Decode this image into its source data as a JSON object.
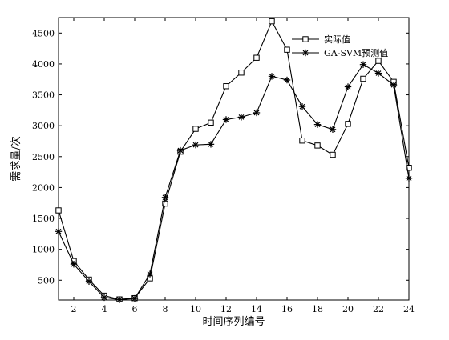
{
  "chart_data": {
    "type": "line",
    "title": "",
    "xlabel": "时间序列编号",
    "ylabel": "需求量/次",
    "xlim": [
      1,
      24
    ],
    "ylim": [
      180,
      4750
    ],
    "xticks": [
      2,
      4,
      6,
      8,
      10,
      12,
      14,
      16,
      18,
      20,
      22,
      24
    ],
    "yticks": [
      500,
      1000,
      1500,
      2000,
      2500,
      3000,
      3500,
      4000,
      4500
    ],
    "grid": false,
    "legend_position": "top-right",
    "x": [
      1,
      2,
      3,
      4,
      5,
      6,
      7,
      8,
      9,
      10,
      11,
      12,
      13,
      14,
      15,
      16,
      17,
      18,
      19,
      20,
      21,
      22,
      23,
      24
    ],
    "series": [
      {
        "name": "实际值",
        "marker": "square",
        "color": "#000000",
        "values": [
          1630,
          810,
          510,
          250,
          190,
          210,
          530,
          1740,
          2580,
          2950,
          3050,
          3640,
          3860,
          4100,
          4690,
          4230,
          2760,
          2680,
          2530,
          3030,
          3760,
          4050,
          3710,
          2320
        ]
      },
      {
        "name": "GA-SVM预测值",
        "marker": "asterisk",
        "color": "#000000",
        "values": [
          1290,
          760,
          480,
          220,
          185,
          205,
          600,
          1840,
          2600,
          2690,
          2700,
          3100,
          3140,
          3210,
          3800,
          3740,
          3310,
          3020,
          2940,
          3630,
          3990,
          3850,
          3660,
          2150
        ]
      }
    ]
  }
}
